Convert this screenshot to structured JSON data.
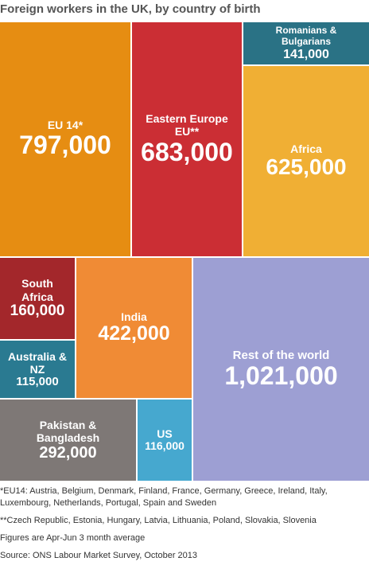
{
  "chart_data": {
    "type": "treemap",
    "title": "Foreign workers in the UK, by country of birth",
    "items": [
      {
        "label": "EU 14*",
        "value": 797000,
        "value_label": "797,000",
        "color": "#E68D12"
      },
      {
        "label": "Eastern Europe EU**",
        "value": 683000,
        "value_label": "683,000",
        "color": "#CB2E34"
      },
      {
        "label": "Romanians & Bulgarians",
        "value": 141000,
        "value_label": "141,000",
        "color": "#2A7285"
      },
      {
        "label": "Africa",
        "value": 625000,
        "value_label": "625,000",
        "color": "#F0AF34"
      },
      {
        "label": "South Africa",
        "value": 160000,
        "value_label": "160,000",
        "color": "#A3272B"
      },
      {
        "label": "India",
        "value": 422000,
        "value_label": "422,000",
        "color": "#F08B35"
      },
      {
        "label": "Rest of the world",
        "value": 1021000,
        "value_label": "1,021,000",
        "color": "#9D9FD3"
      },
      {
        "label": "Australia & NZ",
        "value": 115000,
        "value_label": "115,000",
        "color": "#2A7A91"
      },
      {
        "label": "Pakistan & Bangladesh",
        "value": 292000,
        "value_label": "292,000",
        "color": "#7E7876"
      },
      {
        "label": "US",
        "value": 116000,
        "value_label": "116,000",
        "color": "#46A8CF"
      }
    ]
  },
  "footnotes": {
    "eu14": "*EU14: Austria, Belgium, Denmark, Finland, France, Germany, Greece, Ireland, Italy, Luxembourg, Netherlands, Portugal, Spain and Sweden",
    "eastern": "**Czech Republic, Estonia, Hungary, Latvia, Lithuania, Poland, Slovakia, Slovenia",
    "period": "Figures are Apr-Jun 3 month average",
    "source": "Source: ONS Labour Market Survey, October 2013"
  }
}
